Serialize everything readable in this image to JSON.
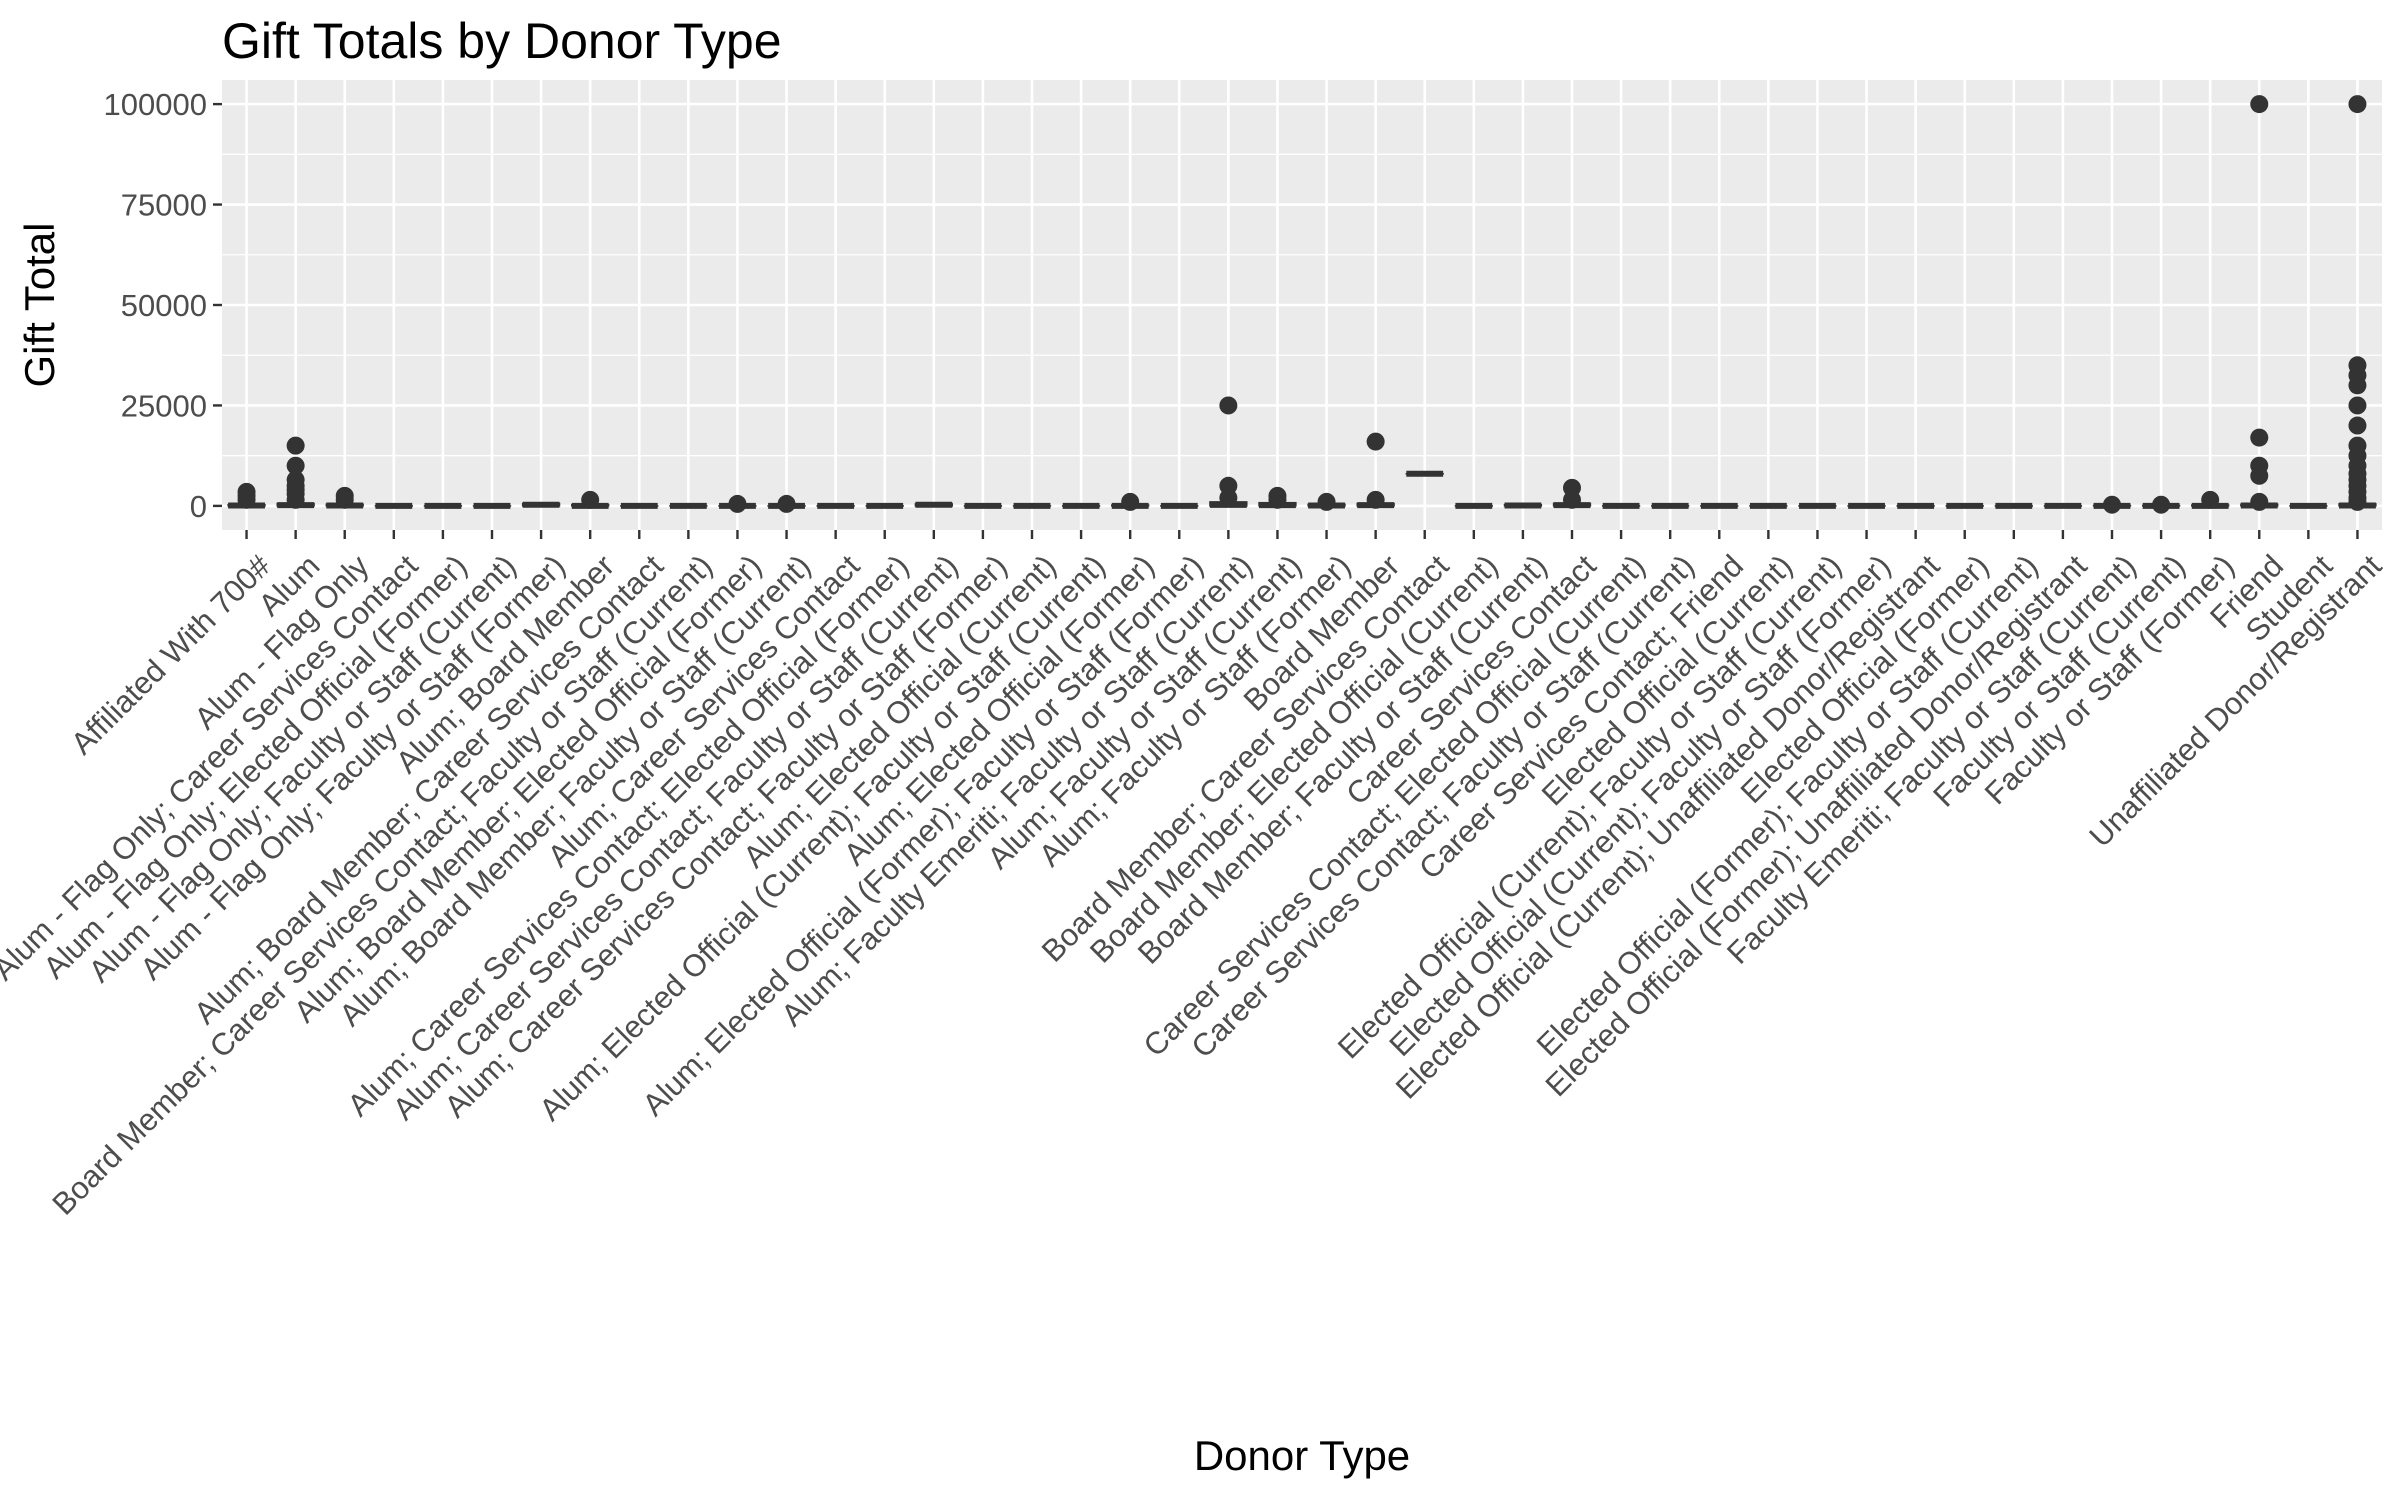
{
  "chart_data": {
    "type": "boxplot",
    "title": "Gift Totals by Donor Type",
    "xlabel": "Donor Type",
    "ylabel": "Gift Total",
    "ylim": [
      -6000,
      106000
    ],
    "yticks": [
      0,
      25000,
      50000,
      75000,
      100000
    ],
    "grid": true,
    "legend": "none",
    "colors": {
      "panel": "#EBEBEB",
      "grid": "#FFFFFF",
      "mark": "#333333",
      "text": "#4D4D4D"
    },
    "categories": [
      "Affiliated With 700#",
      "Alum",
      "Alum - Flag Only",
      "Alum - Flag Only; Career Services Contact",
      "Alum - Flag Only; Elected Official (Former)",
      "Alum - Flag Only; Faculty or Staff (Current)",
      "Alum - Flag Only; Faculty or Staff (Former)",
      "Alum; Board Member",
      "Alum; Board Member; Career Services Contact",
      "Board Member; Career Services Contact; Faculty or Staff (Current)",
      "Alum; Board Member; Elected Official (Former)",
      "Alum; Board Member; Faculty or Staff (Current)",
      "Alum; Career Services Contact",
      "Alum; Career Services Contact; Elected Official (Former)",
      "Alum; Career Services Contact; Faculty or Staff (Current)",
      "Alum; Career Services Contact; Faculty or Staff (Former)",
      "Alum; Elected Official (Current)",
      "Alum; Elected Official (Current); Faculty or Staff (Current)",
      "Alum; Elected Official (Former)",
      "Alum; Elected Official (Former); Faculty or Staff (Former)",
      "Alum; Faculty Emeriti; Faculty or Staff (Current)",
      "Alum; Faculty or Staff (Current)",
      "Alum; Faculty or Staff (Former)",
      "Board Member",
      "Board Member; Career Services Contact",
      "Board Member; Elected Official (Current)",
      "Board Member; Faculty or Staff (Current)",
      "Career Services Contact",
      "Career Services Contact; Elected Official (Current)",
      "Career Services Contact; Faculty or Staff (Current)",
      "Career Services Contact; Friend",
      "Elected Official (Current)",
      "Elected Official (Current); Faculty or Staff (Current)",
      "Elected Official (Current); Faculty or Staff (Former)",
      "Elected Official (Current); Unaffiliated Donor/Registrant",
      "Elected Official (Former)",
      "Elected Official (Former); Faculty or Staff (Current)",
      "Elected Official (Former); Unaffiliated Donor/Registrant",
      "Faculty Emeriti; Faculty or Staff (Current)",
      "Faculty or Staff (Current)",
      "Faculty or Staff (Former)",
      "Friend",
      "Student",
      "Unaffiliated Donor/Registrant"
    ],
    "boxes": [
      {
        "q1": 0,
        "median": 100,
        "q3": 300,
        "outliers": [
          1500,
          2500,
          3500
        ]
      },
      {
        "q1": 0,
        "median": 200,
        "q3": 600,
        "outliers": [
          1500,
          3000,
          4000,
          5000,
          6500,
          10000,
          15000
        ]
      },
      {
        "q1": 0,
        "median": 100,
        "q3": 400,
        "outliers": [
          1500,
          2500
        ]
      },
      {
        "q1": 0,
        "median": 0,
        "q3": 0,
        "outliers": []
      },
      {
        "q1": 0,
        "median": 0,
        "q3": 0,
        "outliers": []
      },
      {
        "q1": 0,
        "median": 0,
        "q3": 0,
        "outliers": []
      },
      {
        "q1": 0,
        "median": 300,
        "q3": 600,
        "outliers": []
      },
      {
        "q1": 0,
        "median": 0,
        "q3": 300,
        "outliers": [
          1500
        ]
      },
      {
        "q1": 0,
        "median": 0,
        "q3": 0,
        "outliers": []
      },
      {
        "q1": 0,
        "median": 0,
        "q3": 0,
        "outliers": []
      },
      {
        "q1": 0,
        "median": 0,
        "q3": 0,
        "outliers": [
          500
        ]
      },
      {
        "q1": 0,
        "median": 0,
        "q3": 0,
        "outliers": [
          500
        ]
      },
      {
        "q1": 0,
        "median": 0,
        "q3": 0,
        "outliers": []
      },
      {
        "q1": 0,
        "median": 0,
        "q3": 0,
        "outliers": []
      },
      {
        "q1": 0,
        "median": 300,
        "q3": 500,
        "outliers": []
      },
      {
        "q1": 0,
        "median": 0,
        "q3": 0,
        "outliers": []
      },
      {
        "q1": 0,
        "median": 0,
        "q3": 0,
        "outliers": []
      },
      {
        "q1": 0,
        "median": 0,
        "q3": 0,
        "outliers": []
      },
      {
        "q1": 0,
        "median": 0,
        "q3": 200,
        "outliers": [
          1000
        ]
      },
      {
        "q1": 0,
        "median": 0,
        "q3": 0,
        "outliers": []
      },
      {
        "q1": 0,
        "median": 250,
        "q3": 1000,
        "outliers": [
          2000,
          5000,
          25000
        ]
      },
      {
        "q1": 0,
        "median": 200,
        "q3": 800,
        "outliers": [
          1500,
          2500
        ]
      },
      {
        "q1": 0,
        "median": 100,
        "q3": 400,
        "outliers": [
          1000
        ]
      },
      {
        "q1": 0,
        "median": 200,
        "q3": 600,
        "outliers": [
          1500,
          16000
        ]
      },
      {
        "q1": 8000,
        "median": 8000,
        "q3": 8000,
        "outliers": []
      },
      {
        "q1": 0,
        "median": 0,
        "q3": 0,
        "outliers": []
      },
      {
        "q1": 0,
        "median": 100,
        "q3": 300,
        "outliers": []
      },
      {
        "q1": 0,
        "median": 200,
        "q3": 600,
        "outliers": [
          1500,
          4500
        ]
      },
      {
        "q1": 0,
        "median": 0,
        "q3": 0,
        "outliers": []
      },
      {
        "q1": 0,
        "median": 0,
        "q3": 0,
        "outliers": []
      },
      {
        "q1": 0,
        "median": 0,
        "q3": 0,
        "outliers": []
      },
      {
        "q1": 0,
        "median": 0,
        "q3": 0,
        "outliers": []
      },
      {
        "q1": 0,
        "median": 0,
        "q3": 0,
        "outliers": []
      },
      {
        "q1": 0,
        "median": 0,
        "q3": 0,
        "outliers": []
      },
      {
        "q1": 0,
        "median": 0,
        "q3": 0,
        "outliers": []
      },
      {
        "q1": 0,
        "median": 0,
        "q3": 0,
        "outliers": []
      },
      {
        "q1": 0,
        "median": 0,
        "q3": 0,
        "outliers": []
      },
      {
        "q1": 0,
        "median": 0,
        "q3": 0,
        "outliers": []
      },
      {
        "q1": 0,
        "median": 0,
        "q3": 100,
        "outliers": [
          300
        ]
      },
      {
        "q1": 0,
        "median": 0,
        "q3": 100,
        "outliers": [
          300
        ]
      },
      {
        "q1": 0,
        "median": 0,
        "q3": 200,
        "outliers": [
          1500
        ]
      },
      {
        "q1": 0,
        "median": 100,
        "q3": 400,
        "outliers": [
          1000,
          7500,
          10000,
          17000,
          100000
        ]
      },
      {
        "q1": 0,
        "median": 0,
        "q3": 0,
        "outliers": []
      },
      {
        "q1": 0,
        "median": 100,
        "q3": 500,
        "outliers": [
          1000,
          2000,
          3500,
          5000,
          6500,
          8000,
          10000,
          12500,
          15000,
          20000,
          25000,
          30000,
          32500,
          35000,
          100000
        ]
      }
    ]
  }
}
